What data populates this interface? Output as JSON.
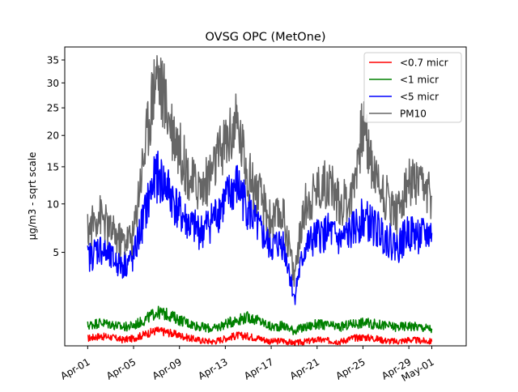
{
  "chart_data": {
    "type": "line",
    "title": "OVSG OPC (MetOne)",
    "xlabel": "",
    "ylabel": "µg/m3 - sqrt scale",
    "y_scale": "sqrt",
    "xlim": [
      "2021-03-30",
      "2021-05-04"
    ],
    "ylim": [
      0.2,
      38
    ],
    "x_ticks": [
      "Apr-01",
      "Apr-05",
      "Apr-09",
      "Apr-13",
      "Apr-17",
      "Apr-21",
      "Apr-25",
      "Apr-29",
      "May-01"
    ],
    "x_tick_dates": [
      "2021-04-01",
      "2021-04-05",
      "2021-04-09",
      "2021-04-13",
      "2021-04-17",
      "2021-04-21",
      "2021-04-25",
      "2021-04-29",
      "2021-05-01"
    ],
    "y_ticks": [
      5,
      10,
      15,
      20,
      25,
      30,
      35
    ],
    "legend_position": "top-right",
    "grid": false,
    "x": [
      "2021-04-01",
      "2021-04-02",
      "2021-04-03",
      "2021-04-04",
      "2021-04-05",
      "2021-04-06",
      "2021-04-07",
      "2021-04-08",
      "2021-04-09",
      "2021-04-10",
      "2021-04-11",
      "2021-04-12",
      "2021-04-13",
      "2021-04-14",
      "2021-04-15",
      "2021-04-16",
      "2021-04-17",
      "2021-04-18",
      "2021-04-19",
      "2021-04-20",
      "2021-04-21",
      "2021-04-22",
      "2021-04-23",
      "2021-04-24",
      "2021-04-25",
      "2021-04-26",
      "2021-04-27",
      "2021-04-28",
      "2021-04-29",
      "2021-04-30",
      "2021-05-01"
    ],
    "series": [
      {
        "name": "<0.7 micr",
        "color": "#ff0000",
        "values": [
          0.35,
          0.4,
          0.38,
          0.32,
          0.35,
          0.45,
          0.55,
          0.5,
          0.42,
          0.35,
          0.3,
          0.28,
          0.35,
          0.42,
          0.4,
          0.35,
          0.28,
          0.3,
          0.25,
          0.28,
          0.32,
          0.3,
          0.28,
          0.35,
          0.38,
          0.35,
          0.3,
          0.28,
          0.32,
          0.3,
          0.28
        ]
      },
      {
        "name": "<1 micr",
        "color": "#008000",
        "values": [
          0.7,
          0.8,
          0.75,
          0.65,
          0.7,
          0.9,
          1.2,
          1.1,
          0.9,
          0.75,
          0.65,
          0.6,
          0.75,
          0.9,
          1.0,
          0.85,
          0.65,
          0.7,
          0.55,
          0.65,
          0.75,
          0.7,
          0.65,
          0.75,
          0.8,
          0.75,
          0.7,
          0.65,
          0.7,
          0.65,
          0.6
        ]
      },
      {
        "name": "<5 micr",
        "color": "#0000ff",
        "values": [
          4.5,
          5.5,
          4.5,
          4.0,
          4.5,
          9.0,
          14.0,
          12.0,
          9.0,
          7.5,
          7.0,
          8.5,
          10.5,
          12.5,
          9.5,
          7.0,
          5.5,
          6.0,
          1.8,
          5.5,
          6.5,
          7.0,
          6.0,
          7.0,
          8.5,
          7.5,
          6.5,
          5.5,
          7.0,
          6.5,
          6.8
        ]
      },
      {
        "name": "PM10",
        "color": "#666666",
        "values": [
          7.0,
          9.0,
          7.0,
          6.0,
          6.5,
          18.0,
          33.0,
          24.0,
          18.0,
          13.0,
          12.0,
          15.0,
          19.0,
          22.0,
          14.0,
          11.0,
          8.0,
          9.0,
          3.0,
          10.0,
          12.0,
          13.0,
          10.0,
          11.0,
          22.0,
          14.0,
          11.0,
          9.0,
          13.0,
          12.0,
          11.0
        ]
      }
    ]
  }
}
